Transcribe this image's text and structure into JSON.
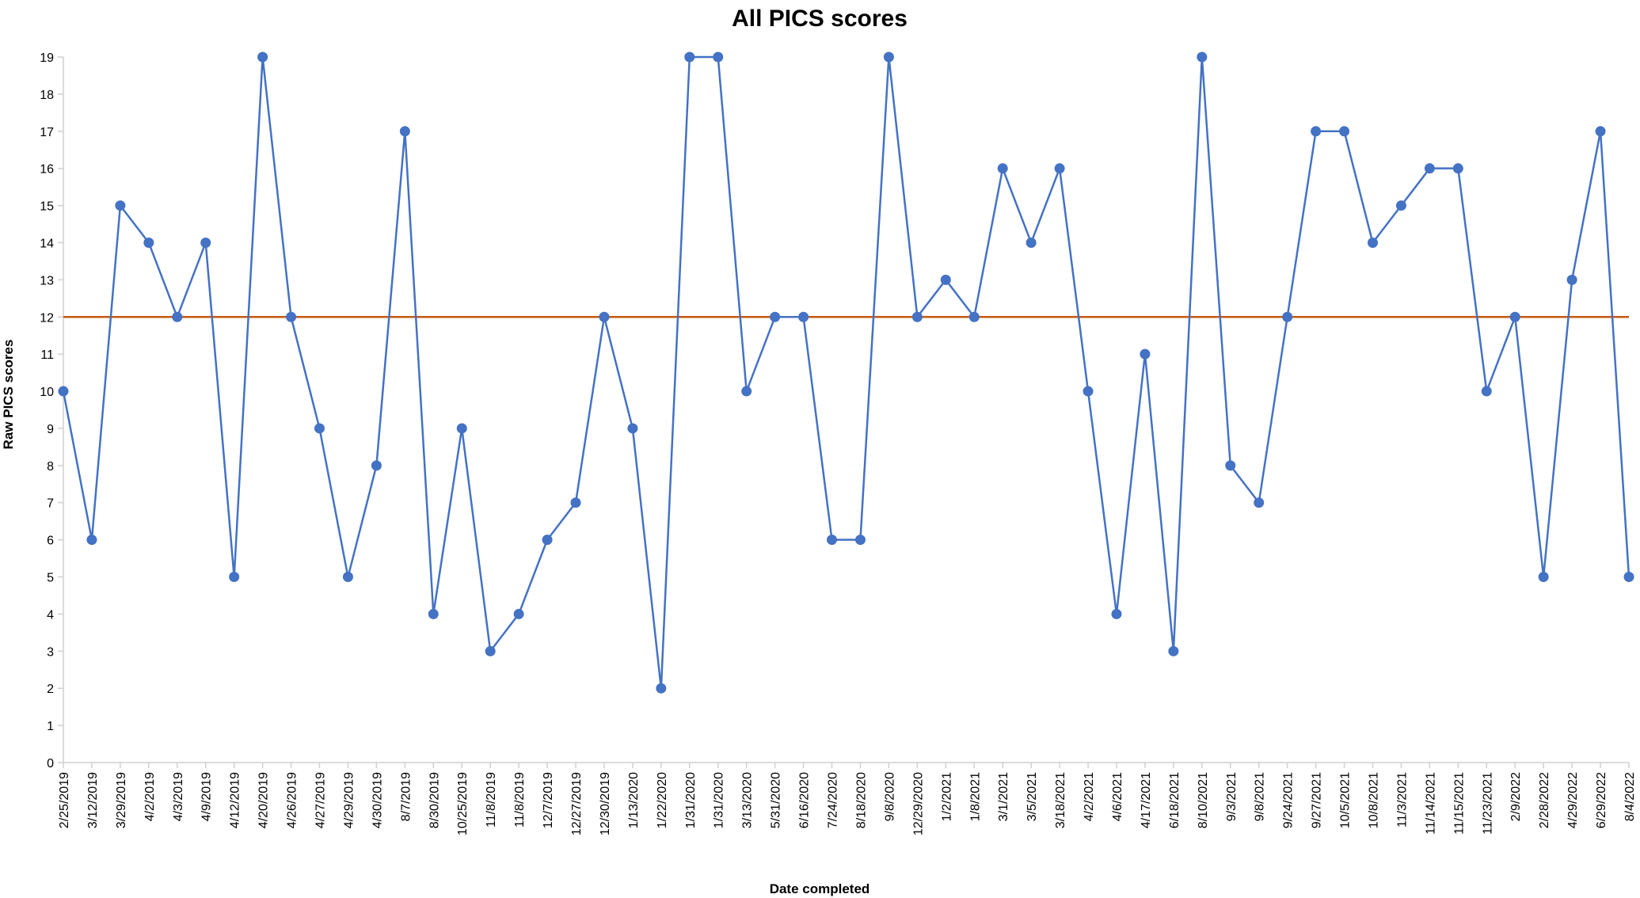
{
  "chart_data": {
    "type": "line",
    "title": "All PICS scores",
    "xlabel": "Date completed",
    "ylabel": "Raw PICS scores",
    "ylim": [
      0,
      19
    ],
    "yticks": [
      0,
      1,
      2,
      3,
      4,
      5,
      6,
      7,
      8,
      9,
      10,
      11,
      12,
      13,
      14,
      15,
      16,
      17,
      18,
      19
    ],
    "grid": false,
    "legend": "none",
    "categories": [
      "2/25/2019",
      "3/12/2019",
      "3/29/2019",
      "4/2/2019",
      "4/3/2019",
      "4/9/2019",
      "4/12/2019",
      "4/20/2019",
      "4/26/2019",
      "4/27/2019",
      "4/29/2019",
      "4/30/2019",
      "8/7/2019",
      "8/30/2019",
      "10/25/2019",
      "11/8/2019",
      "11/8/2019",
      "12/7/2019",
      "12/27/2019",
      "12/30/2019",
      "1/13/2020",
      "1/22/2020",
      "1/31/2020",
      "1/31/2020",
      "3/13/2020",
      "5/31/2020",
      "6/16/2020",
      "7/24/2020",
      "8/18/2020",
      "9/8/2020",
      "12/29/2020",
      "1/2/2021",
      "1/8/2021",
      "3/1/2021",
      "3/5/2021",
      "3/18/2021",
      "4/2/2021",
      "4/6/2021",
      "4/17/2021",
      "6/18/2021",
      "8/10/2021",
      "9/3/2021",
      "9/8/2021",
      "9/24/2021",
      "9/27/2021",
      "10/5/2021",
      "10/8/2021",
      "11/3/2021",
      "11/14/2021",
      "11/15/2021",
      "11/23/2021",
      "2/9/2022",
      "2/28/2022",
      "4/29/2022",
      "6/29/2022",
      "8/4/2022"
    ],
    "series": [
      {
        "values": [
          10,
          6,
          15,
          14,
          12,
          14,
          5,
          19,
          12,
          9,
          5,
          8,
          17,
          4,
          9,
          3,
          4,
          6,
          7,
          12,
          9,
          2,
          19,
          19,
          10,
          12,
          12,
          6,
          6,
          19,
          12,
          13,
          12,
          16,
          14,
          16,
          10,
          4,
          11,
          3,
          19,
          8,
          7,
          12,
          17,
          17,
          14,
          15,
          16,
          16,
          10,
          12,
          5,
          13,
          17,
          5
        ],
        "color": "#4472C4"
      }
    ],
    "reference_line": {
      "value": 12,
      "color": "#C55A11"
    }
  }
}
